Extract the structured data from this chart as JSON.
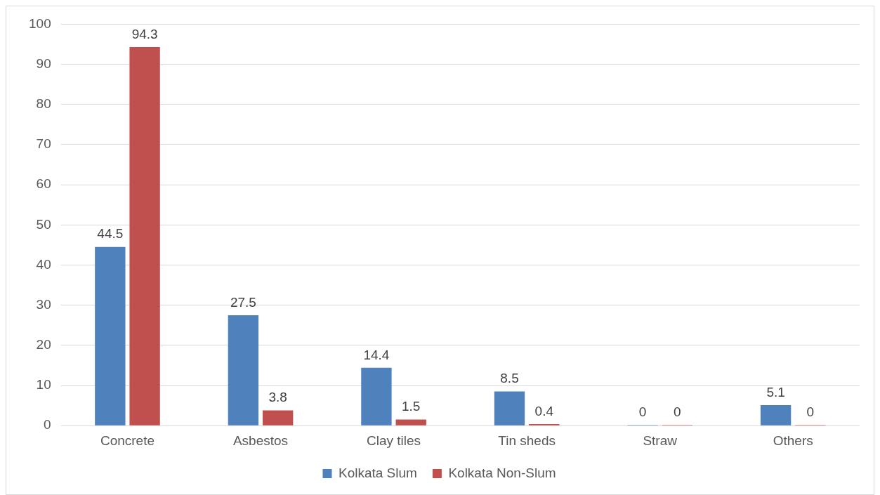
{
  "chart_data": {
    "type": "bar",
    "categories": [
      "Concrete",
      "Asbestos",
      "Clay tiles",
      "Tin sheds",
      "Straw",
      "Others"
    ],
    "series": [
      {
        "name": "Kolkata Slum",
        "color": "#4f81bd",
        "values": [
          44.5,
          27.5,
          14.4,
          8.5,
          0,
          5.1
        ]
      },
      {
        "name": "Kolkata Non-Slum",
        "color": "#c0504d",
        "values": [
          94.3,
          3.8,
          1.5,
          0.4,
          0,
          0
        ]
      }
    ],
    "ylim": [
      0,
      100
    ],
    "yticks": [
      0,
      10,
      20,
      30,
      40,
      50,
      60,
      70,
      80,
      90,
      100
    ],
    "grid": "y",
    "legend": "bottom",
    "data_labels": true
  }
}
